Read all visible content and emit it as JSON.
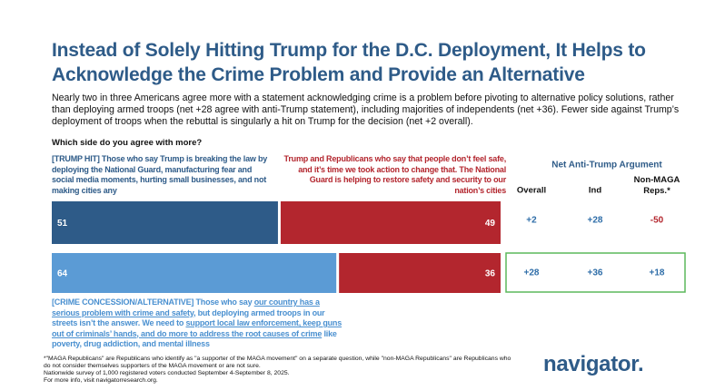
{
  "title": "Instead of Solely Hitting Trump for the D.C. Deployment, It Helps to Acknowledge the Crime Problem and Provide an Alternative",
  "subtitle": "Nearly two in three Americans agree more with a statement acknowledging crime is a problem before pivoting to alternative policy solutions, rather than deploying armed troops (net +28 agree with anti-Trump statement), including majorities of independents (net +36). Fewer side against Trump’s deployment of troops when the rebuttal is singularly a hit on Trump for the decision (net +2 overall).",
  "question": "Which side do you agree with more?",
  "statements": {
    "trump_hit": "[TRUMP HIT] Those who say Trump is breaking the law by deploying the National Guard, manufacturing fear and social media moments, hurting small businesses, and not making cities any",
    "republican": "Trump and Republicans who say that people don’t feel safe, and it’s time we took action to change that. The National Guard is helping to restore safety and security to our nation’s cities",
    "crime": [
      {
        "text": "[CRIME CONCESSION/ALTERNATIVE] Those who say ",
        "emphasis": false
      },
      {
        "text": "our country has a serious problem with crime and safety",
        "emphasis": true
      },
      {
        "text": ", but deploying armed troops in our streets isn’t the answer. We need to ",
        "emphasis": false
      },
      {
        "text": "support local law enforcement, keep guns out of criminals’ hands, and do more to address the root causes of crime",
        "emphasis": true
      },
      {
        "text": " like poverty, drug addiction, and mental illness",
        "emphasis": false
      }
    ]
  },
  "chart_data": {
    "type": "bar",
    "orientation": "horizontal",
    "stacked": true,
    "categories": [
      null,
      null
    ],
    "xlim": [
      0,
      100
    ],
    "series": [
      {
        "colors": [
          "#2e5b88",
          "#5b9bd5"
        ],
        "values": [
          51,
          64
        ]
      },
      {
        "name": "Trump and Republicans who say that people don’t feel safe, and it’s time we took action to change that. The National Guard is helping to restore safety and security to our nation’s cities",
        "color": "#b3262e",
        "values": [
          49,
          36
        ]
      }
    ]
  },
  "net_table": {
    "title": "Net Anti-Trump Argument",
    "columns": [
      "Overall",
      "Ind",
      "Non-MAGA Reps.*"
    ],
    "rows": [
      [
        "+2",
        "+28",
        "-50"
      ],
      [
        "+28",
        "+36",
        "+18"
      ]
    ],
    "highlight_row": 1
  },
  "footnotes": [
    "*\"MAGA Republicans\" are Republicans who identify as \"a supporter of the MAGA movement\" on a separate question, while \"non-MAGA Republicans\" are Republicans who do not consider themselves supporters of the MAGA movement or are not sure.",
    "Nationwide survey of 1,000 registered voters conducted September 4-September 8, 2025.",
    "For more info, visit navigatorresearch.org."
  ],
  "logo": "navigator."
}
